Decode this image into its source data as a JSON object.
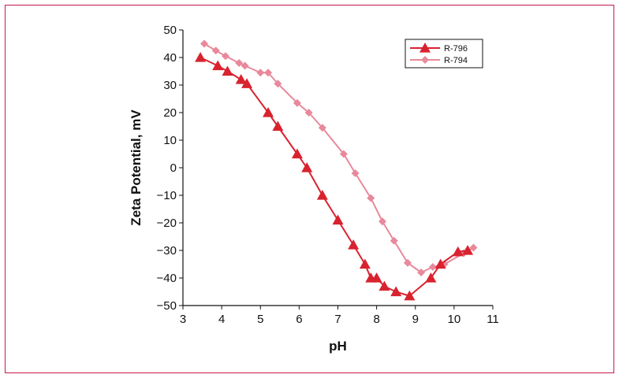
{
  "chart_data": {
    "type": "line",
    "title": "",
    "xlabel": "pH",
    "ylabel": "Zeta Potential, mV",
    "xlim": [
      3,
      11
    ],
    "ylim": [
      -50,
      50
    ],
    "x_ticks": [
      "3",
      "4",
      "5",
      "6",
      "7",
      "8",
      "9",
      "10",
      "11"
    ],
    "y_ticks": [
      "50",
      "40",
      "30",
      "20",
      "10",
      "0",
      "−10",
      "−20",
      "−30",
      "−40",
      "−50"
    ],
    "x_tick_values": [
      3,
      4,
      5,
      6,
      7,
      8,
      9,
      10,
      11
    ],
    "y_tick_values": [
      50,
      40,
      30,
      20,
      10,
      0,
      -10,
      -20,
      -30,
      -40,
      -50
    ],
    "grid": false,
    "legend_position": "top-right",
    "series": [
      {
        "name": "R-796",
        "marker": "triangle",
        "color": "#d8232f",
        "x": [
          3.45,
          3.9,
          4.15,
          4.5,
          4.65,
          5.2,
          5.45,
          5.95,
          6.2,
          6.6,
          7.0,
          7.4,
          7.7,
          7.85,
          8.0,
          8.2,
          8.5,
          8.85,
          9.4,
          9.65,
          10.1,
          10.35
        ],
        "y": [
          40,
          37,
          35,
          32,
          30.5,
          20,
          15,
          5,
          0,
          -10,
          -19,
          -28,
          -35,
          -40,
          -40,
          -43,
          -45,
          -46.5,
          -40,
          -35,
          -30.5,
          -30
        ]
      },
      {
        "name": "R-794",
        "marker": "diamond",
        "color": "#e8899c",
        "x": [
          3.55,
          3.85,
          4.1,
          4.45,
          4.6,
          5.0,
          5.2,
          5.45,
          5.95,
          6.25,
          6.6,
          7.15,
          7.45,
          7.85,
          8.15,
          8.45,
          8.8,
          9.15,
          9.45,
          9.75,
          10.25,
          10.5
        ],
        "y": [
          45,
          42.5,
          40.5,
          38,
          37,
          34.5,
          34.5,
          30.5,
          23.5,
          20,
          14.5,
          5,
          -2,
          -11,
          -19.5,
          -26.5,
          -34.5,
          -38,
          -36,
          -35,
          -31,
          -29
        ]
      }
    ]
  }
}
